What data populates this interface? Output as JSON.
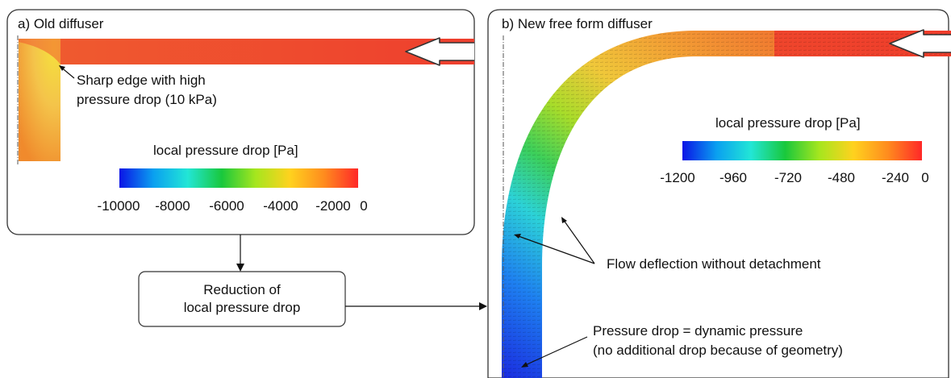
{
  "panel_a": {
    "title": "a) Old diffuser",
    "annotation_line1": "Sharp edge with high",
    "annotation_line2": "pressure drop (10 kPa)",
    "legend": {
      "title": "local pressure drop [Pa]",
      "ticks": [
        "-10000",
        "-8000",
        "-6000",
        "-4000",
        "-2000",
        "0"
      ]
    }
  },
  "panel_b": {
    "title": "b) New free form diffuser",
    "legend": {
      "title": "local pressure drop [Pa]",
      "ticks": [
        "-1200",
        "-960",
        "-720",
        "-480",
        "-240",
        "0"
      ]
    },
    "annotation_flow": "Flow deflection without detachment",
    "annotation_pressure_line1": "Pressure drop = dynamic pressure",
    "annotation_pressure_line2": "(no additional drop because of geometry)"
  },
  "process_box": {
    "line1": "Reduction of",
    "line2": "local pressure drop"
  },
  "colors": {
    "colormap": [
      "#0a14e6",
      "#0aa0f0",
      "#22e6d6",
      "#19c83c",
      "#a6e61e",
      "#ffd21e",
      "#ff8c1e",
      "#ff2828"
    ],
    "old_duct": "#ef4a2e",
    "old_corner": "#f4b43a",
    "arrow_fill": "#ffffff"
  }
}
